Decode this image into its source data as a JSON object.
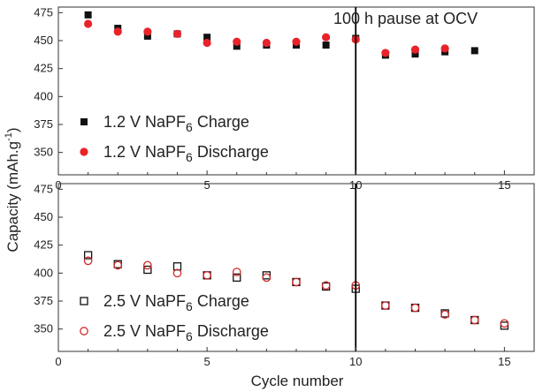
{
  "chart_data": [
    {
      "type": "scatter",
      "xlim": [
        0,
        16
      ],
      "ylim": [
        330,
        480
      ],
      "xticks": [
        0,
        5,
        10,
        15
      ],
      "yticks": [
        350,
        375,
        400,
        425,
        450,
        475
      ],
      "annotation": "100 h pause at OCV",
      "vline_x": 10,
      "legend_position": "bottom-left",
      "series": [
        {
          "name": "1.2 V NaPF",
          "name_sub": "6",
          "name_suffix": "Charge",
          "marker": "square-filled",
          "color": "#111111",
          "x": [
            1,
            2,
            3,
            4,
            5,
            6,
            7,
            8,
            9,
            10,
            11,
            12,
            13,
            14
          ],
          "y": [
            473,
            461,
            454,
            456,
            453,
            445,
            446,
            446,
            446,
            452,
            437,
            438,
            440,
            441
          ]
        },
        {
          "name": "1.2 V NaPF",
          "name_sub": "6",
          "name_suffix": "Discharge",
          "marker": "circle-filled",
          "color": "#e8232a",
          "x": [
            1,
            2,
            3,
            4,
            5,
            6,
            7,
            8,
            9,
            10,
            11,
            12,
            13
          ],
          "y": [
            465,
            458,
            458,
            456,
            448,
            449,
            448,
            449,
            453,
            451,
            439,
            442,
            443
          ]
        }
      ]
    },
    {
      "type": "scatter",
      "xlim": [
        0,
        16
      ],
      "ylim": [
        330,
        480
      ],
      "xticks": [
        0,
        5,
        10,
        15
      ],
      "yticks": [
        350,
        375,
        400,
        425,
        450,
        475
      ],
      "vline_x": 10,
      "legend_position": "bottom-left",
      "xlabel": "Cycle number",
      "series": [
        {
          "name": "2.5 V NaPF",
          "name_sub": "6",
          "name_suffix": "Charge",
          "marker": "square-open",
          "color": "#111111",
          "x": [
            1,
            2,
            3,
            4,
            5,
            6,
            7,
            8,
            9,
            10,
            11,
            12,
            13,
            14,
            15
          ],
          "y": [
            416,
            408,
            403,
            406,
            398,
            396,
            398,
            392,
            388,
            386,
            371,
            369,
            364,
            358,
            353
          ]
        },
        {
          "name": "2.5 V NaPF",
          "name_sub": "6",
          "name_suffix": "Discharge",
          "marker": "circle-open",
          "color": "#d42a2a",
          "x": [
            1,
            2,
            3,
            4,
            5,
            6,
            7,
            8,
            9,
            10,
            11,
            12,
            13,
            14,
            15
          ],
          "y": [
            411,
            407,
            407,
            400,
            398,
            401,
            396,
            392,
            389,
            389,
            371,
            369,
            363,
            358,
            355
          ]
        }
      ]
    }
  ],
  "shared_ylabel": "Capacity (mAh.g",
  "shared_ylabel_sup": "-1",
  "shared_ylabel_suffix": ")"
}
